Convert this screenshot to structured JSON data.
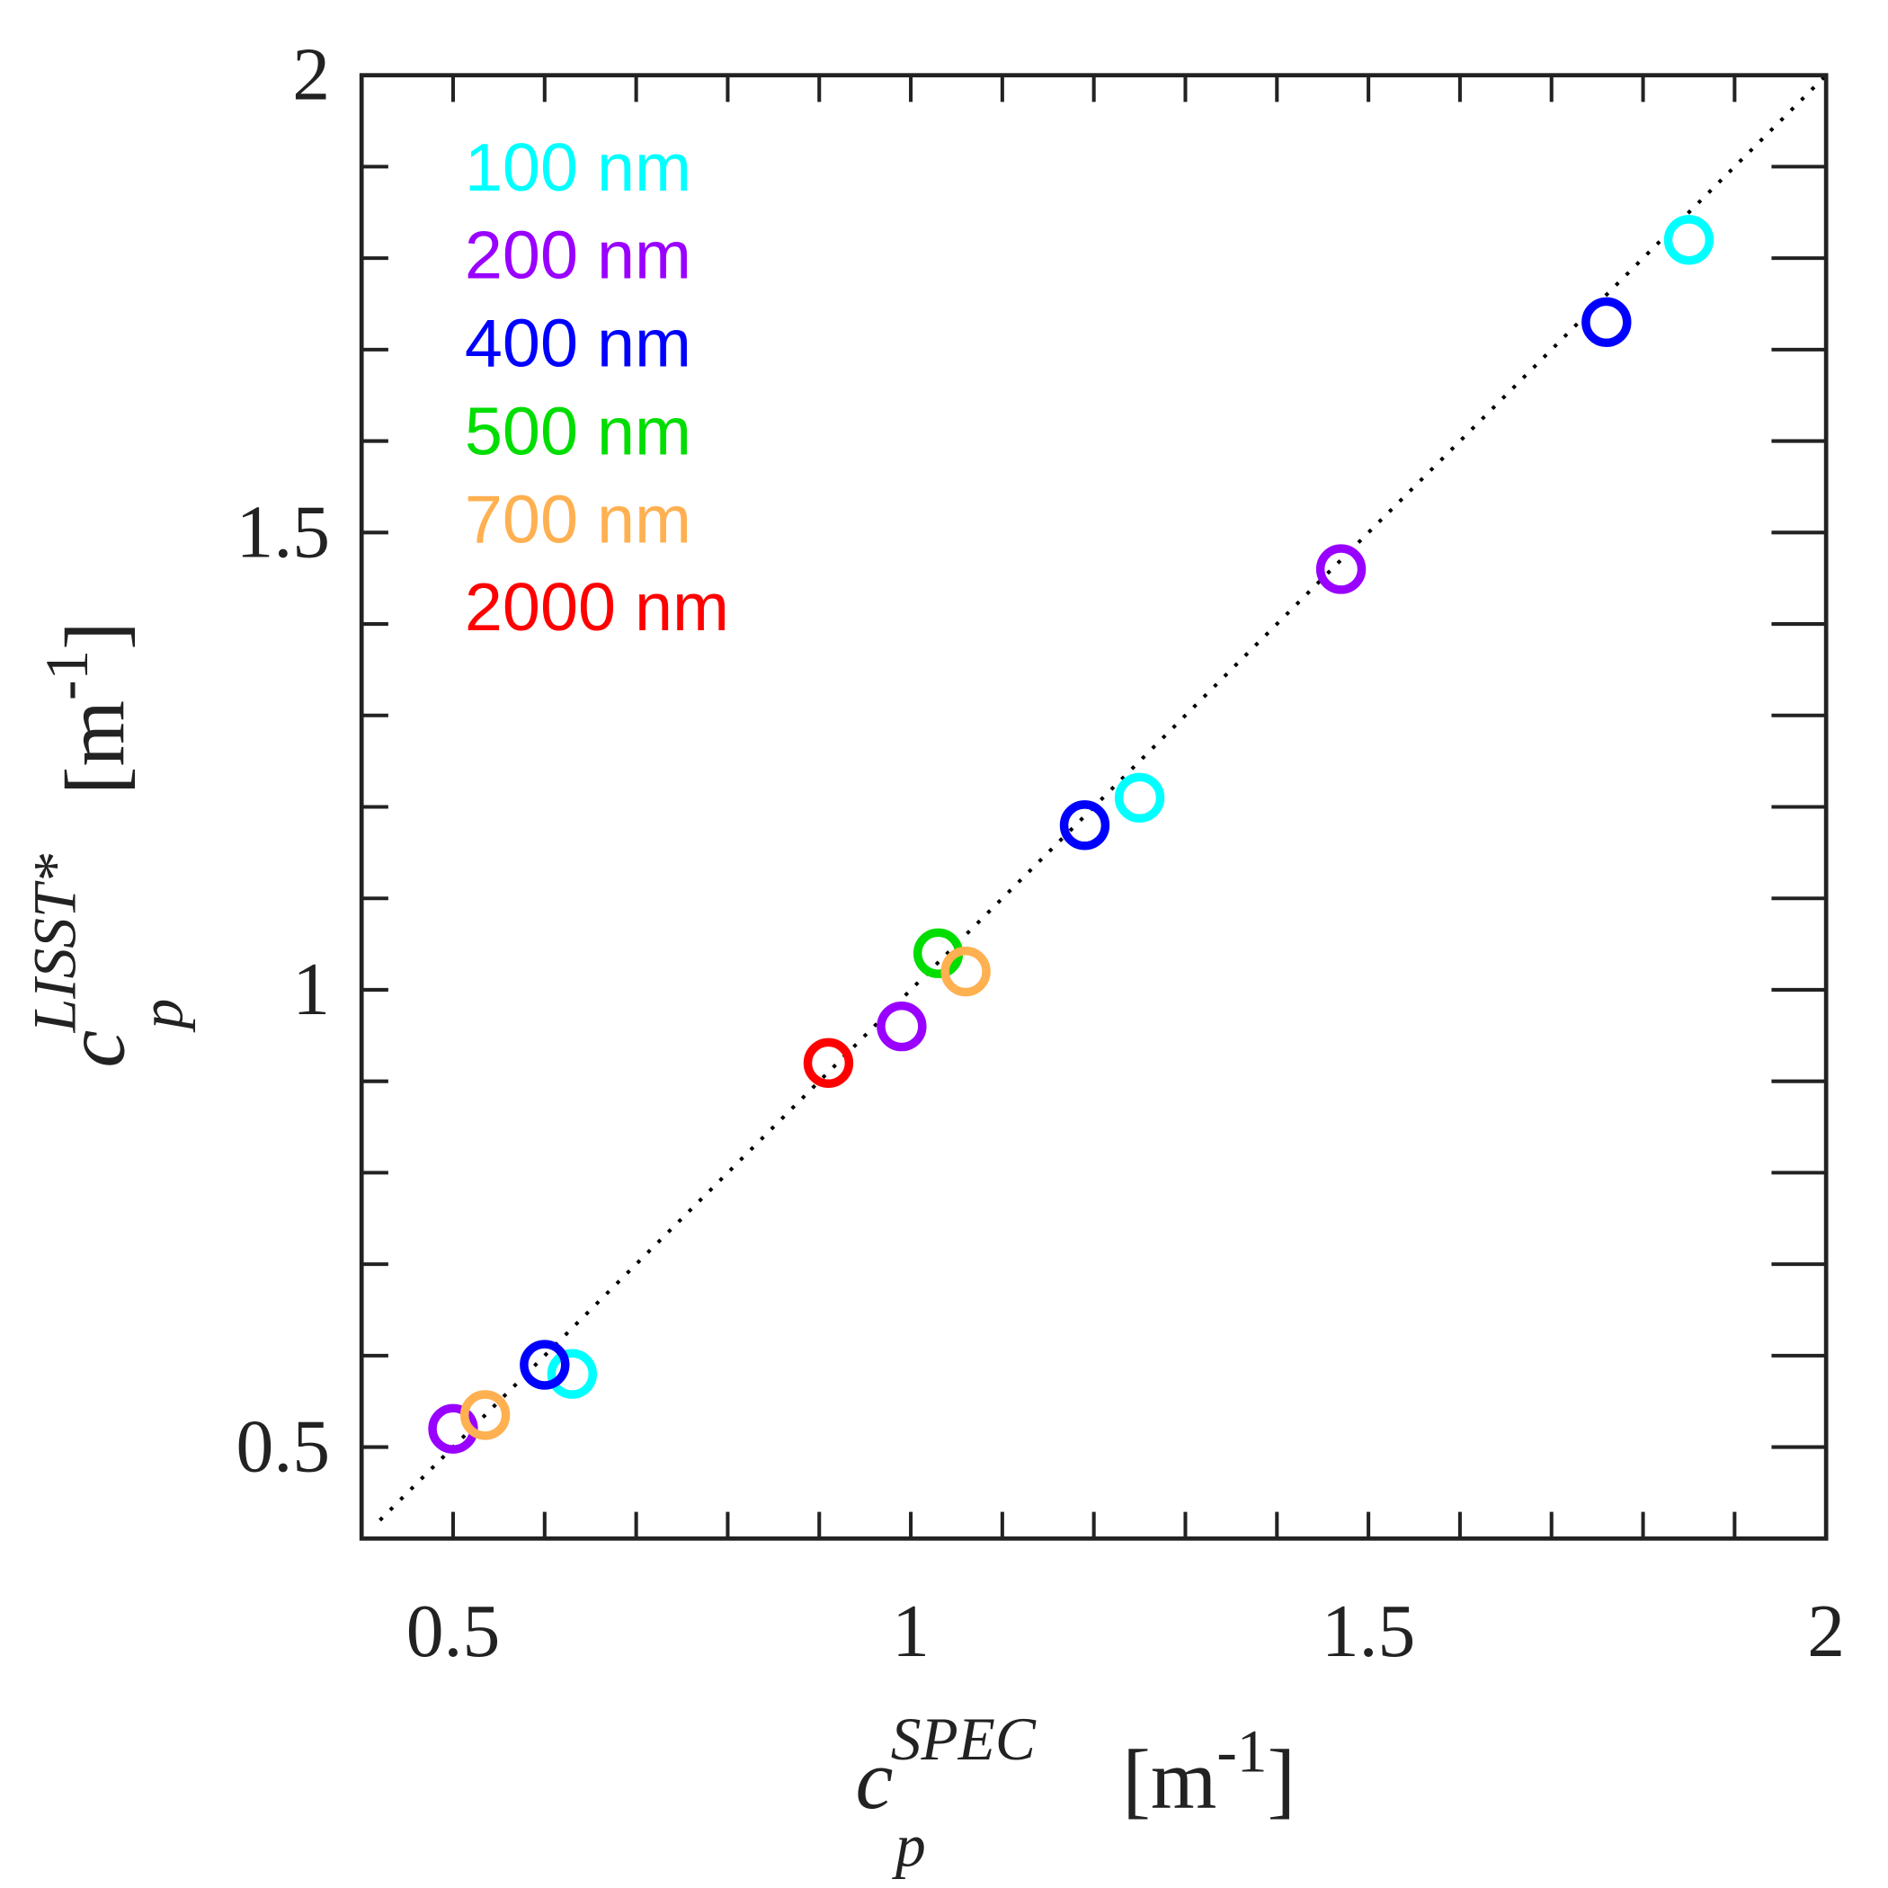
{
  "chart_data": {
    "type": "scatter",
    "title": "",
    "xlabel": {
      "base": "c",
      "sub": "p",
      "sup": "SPEC",
      "unit": "[m",
      "unit_exp": "-1",
      "unit_close": "]"
    },
    "ylabel": {
      "base": "c",
      "sub": "p",
      "sup": "LISST*",
      "unit": "[m",
      "unit_exp": "-1",
      "unit_close": "]"
    },
    "xlim": [
      0.4,
      2
    ],
    "ylim": [
      0.4,
      2
    ],
    "xticks": [
      0.5,
      1,
      1.5,
      2
    ],
    "xtick_labels": [
      "0.5",
      "1",
      "1.5",
      "2"
    ],
    "yticks": [
      0.5,
      1,
      1.5,
      2
    ],
    "ytick_labels": [
      "0.5",
      "1",
      "1.5",
      "2"
    ],
    "minor_step": 0.1,
    "grid": false,
    "reference_line": "1:1 dotted",
    "legend_position": "top-left",
    "series": [
      {
        "name": "100 nm",
        "color": "#00ffff",
        "x": [
          1.85,
          1.25,
          0.63
        ],
        "y": [
          1.82,
          1.21,
          0.58
        ]
      },
      {
        "name": "200 nm",
        "color": "#9900ff",
        "x": [
          1.47,
          0.99,
          0.5
        ],
        "y": [
          1.46,
          0.96,
          0.52
        ]
      },
      {
        "name": "400 nm",
        "color": "#0000ff",
        "x": [
          1.76,
          1.19,
          0.6
        ],
        "y": [
          1.73,
          1.18,
          0.59
        ]
      },
      {
        "name": "500 nm",
        "color": "#00dd00",
        "x": [
          1.03
        ],
        "y": [
          1.04
        ]
      },
      {
        "name": "700 nm",
        "color": "#ffb050",
        "x": [
          1.06,
          0.535
        ],
        "y": [
          1.02,
          0.535
        ]
      },
      {
        "name": "2000 nm",
        "color": "#ff0000",
        "x": [
          0.91
        ],
        "y": [
          0.92
        ]
      }
    ]
  }
}
